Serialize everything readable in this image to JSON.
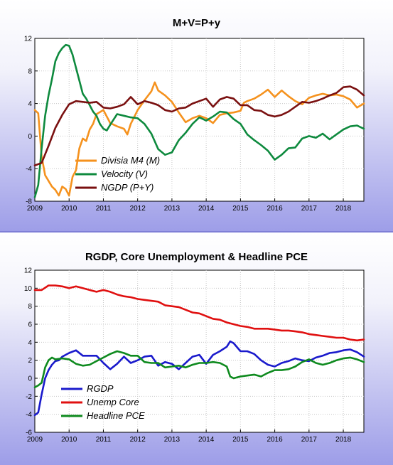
{
  "chart_data": [
    {
      "type": "line",
      "title": "M+V=P+y",
      "xlabel": "",
      "ylabel": "",
      "xlim": [
        2009.0,
        2018.6
      ],
      "ylim": [
        -8,
        12
      ],
      "yticks": [
        "12",
        "8",
        "4",
        "0",
        "-4",
        "-8"
      ],
      "xticks": [
        "2009",
        "2010",
        "2011",
        "2012",
        "2013",
        "2014",
        "2015",
        "2016",
        "2017",
        "2018"
      ],
      "grid": true,
      "legend_position": "bottom-left",
      "series": [
        {
          "name": "Divisia M4 (M)",
          "color": "#f5921e",
          "x": [
            2009.0,
            2009.1,
            2009.2,
            2009.3,
            2009.4,
            2009.5,
            2009.6,
            2009.7,
            2009.8,
            2009.9,
            2010.0,
            2010.1,
            2010.2,
            2010.3,
            2010.4,
            2010.5,
            2010.6,
            2010.7,
            2010.8,
            2011.0,
            2011.2,
            2011.4,
            2011.6,
            2011.7,
            2011.8,
            2012.0,
            2012.2,
            2012.4,
            2012.5,
            2012.6,
            2012.8,
            2013.0,
            2013.2,
            2013.4,
            2013.6,
            2013.8,
            2014.0,
            2014.2,
            2014.4,
            2014.6,
            2014.8,
            2015.0,
            2015.1,
            2015.2,
            2015.4,
            2015.6,
            2015.8,
            2016.0,
            2016.2,
            2016.4,
            2016.6,
            2016.8,
            2017.0,
            2017.2,
            2017.4,
            2017.6,
            2017.8,
            2018.0,
            2018.2,
            2018.4,
            2018.6
          ],
          "y": [
            3.2,
            2.8,
            -2.5,
            -4.8,
            -5.5,
            -6.2,
            -6.6,
            -7.3,
            -6.2,
            -6.5,
            -7.3,
            -5.0,
            -4.2,
            -1.5,
            -0.3,
            -0.6,
            0.8,
            1.5,
            2.7,
            3.2,
            1.6,
            1.2,
            0.9,
            0.2,
            1.5,
            3.2,
            4.4,
            5.5,
            6.6,
            5.6,
            5.0,
            4.2,
            2.9,
            1.7,
            2.2,
            2.5,
            2.2,
            1.6,
            2.6,
            2.8,
            2.9,
            3.1,
            4.1,
            4.3,
            4.6,
            5.1,
            5.7,
            4.8,
            5.6,
            4.9,
            4.3,
            3.9,
            4.7,
            5.0,
            5.2,
            5.0,
            5.1,
            4.9,
            4.5,
            3.5,
            4.0
          ]
        },
        {
          "name": "Velocity (V)",
          "color": "#0e8a3e",
          "x": [
            2009.0,
            2009.1,
            2009.2,
            2009.3,
            2009.4,
            2009.5,
            2009.6,
            2009.7,
            2009.8,
            2009.9,
            2010.0,
            2010.1,
            2010.2,
            2010.3,
            2010.4,
            2010.5,
            2010.6,
            2010.7,
            2010.8,
            2010.9,
            2011.0,
            2011.1,
            2011.2,
            2011.4,
            2011.6,
            2011.8,
            2012.0,
            2012.2,
            2012.4,
            2012.6,
            2012.8,
            2013.0,
            2013.2,
            2013.4,
            2013.6,
            2013.8,
            2014.0,
            2014.2,
            2014.4,
            2014.6,
            2014.8,
            2015.0,
            2015.2,
            2015.4,
            2015.6,
            2015.8,
            2016.0,
            2016.2,
            2016.4,
            2016.6,
            2016.8,
            2017.0,
            2017.2,
            2017.4,
            2017.6,
            2017.8,
            2018.0,
            2018.2,
            2018.4,
            2018.6
          ],
          "y": [
            -7.5,
            -6.0,
            -1.5,
            2.5,
            5.0,
            7.0,
            9.2,
            10.2,
            10.8,
            11.2,
            11.1,
            10.0,
            8.4,
            6.8,
            5.2,
            4.6,
            3.8,
            3.0,
            2.5,
            1.5,
            0.9,
            0.7,
            1.4,
            2.7,
            2.5,
            2.3,
            2.2,
            1.5,
            0.3,
            -1.6,
            -2.3,
            -2.0,
            -0.5,
            0.4,
            1.5,
            2.3,
            1.9,
            2.4,
            3.0,
            2.9,
            2.1,
            1.5,
            0.2,
            -0.5,
            -1.1,
            -1.8,
            -2.9,
            -2.3,
            -1.5,
            -1.4,
            -0.3,
            0.0,
            -0.2,
            0.3,
            -0.4,
            0.2,
            0.8,
            1.2,
            1.3,
            0.9
          ]
        },
        {
          "name": "NGDP (P+Y)",
          "color": "#7a1010",
          "x": [
            2009.0,
            2009.2,
            2009.4,
            2009.6,
            2009.8,
            2010.0,
            2010.2,
            2010.4,
            2010.6,
            2010.8,
            2011.0,
            2011.2,
            2011.4,
            2011.6,
            2011.8,
            2012.0,
            2012.2,
            2012.4,
            2012.6,
            2012.8,
            2013.0,
            2013.2,
            2013.4,
            2013.6,
            2013.8,
            2014.0,
            2014.2,
            2014.4,
            2014.6,
            2014.8,
            2015.0,
            2015.2,
            2015.4,
            2015.6,
            2015.8,
            2016.0,
            2016.2,
            2016.4,
            2016.6,
            2016.8,
            2017.0,
            2017.2,
            2017.4,
            2017.6,
            2017.8,
            2018.0,
            2018.2,
            2018.4,
            2018.6
          ],
          "y": [
            -3.6,
            -3.3,
            -1.2,
            1.0,
            2.6,
            3.9,
            4.3,
            4.2,
            4.1,
            4.2,
            3.5,
            3.4,
            3.6,
            3.9,
            4.8,
            3.9,
            4.3,
            4.1,
            3.8,
            3.2,
            3.0,
            3.4,
            3.5,
            4.0,
            4.3,
            4.6,
            3.6,
            4.5,
            4.8,
            4.6,
            3.8,
            3.8,
            3.2,
            3.1,
            2.6,
            2.4,
            2.6,
            3.0,
            3.6,
            4.2,
            4.1,
            4.3,
            4.6,
            5.0,
            5.3,
            6.0,
            6.1,
            5.7,
            5.0
          ]
        }
      ]
    },
    {
      "type": "line",
      "title": "RGDP, Core Unemployment & Headline PCE",
      "xlabel": "",
      "ylabel": "",
      "xlim": [
        2009.0,
        2018.6
      ],
      "ylim": [
        -6,
        12
      ],
      "yticks": [
        "12",
        "10",
        "8",
        "6",
        "4",
        "2",
        "0",
        "-2",
        "-4",
        "-6"
      ],
      "xticks": [
        "2009",
        "2010",
        "2011",
        "2012",
        "2013",
        "2014",
        "2015",
        "2016",
        "2017",
        "2018"
      ],
      "grid": true,
      "legend_position": "bottom-left",
      "series": [
        {
          "name": "RGDP",
          "color": "#1a1acc",
          "x": [
            2009.0,
            2009.1,
            2009.2,
            2009.3,
            2009.4,
            2009.5,
            2009.6,
            2009.7,
            2009.8,
            2010.0,
            2010.2,
            2010.4,
            2010.6,
            2010.8,
            2011.0,
            2011.2,
            2011.4,
            2011.6,
            2011.8,
            2012.0,
            2012.2,
            2012.4,
            2012.6,
            2012.8,
            2013.0,
            2013.2,
            2013.4,
            2013.6,
            2013.8,
            2014.0,
            2014.2,
            2014.4,
            2014.6,
            2014.7,
            2014.8,
            2015.0,
            2015.2,
            2015.4,
            2015.6,
            2015.8,
            2016.0,
            2016.2,
            2016.4,
            2016.6,
            2016.8,
            2017.0,
            2017.2,
            2017.4,
            2017.6,
            2017.8,
            2018.0,
            2018.2,
            2018.4,
            2018.6
          ],
          "y": [
            -4.1,
            -3.8,
            -1.8,
            0.0,
            0.9,
            1.5,
            1.9,
            2.0,
            2.4,
            2.8,
            3.1,
            2.5,
            2.5,
            2.5,
            1.7,
            1.0,
            1.6,
            2.4,
            1.7,
            2.0,
            2.4,
            2.5,
            1.4,
            1.8,
            1.6,
            1.0,
            1.7,
            2.4,
            2.6,
            1.6,
            2.6,
            3.0,
            3.5,
            4.1,
            3.9,
            3.0,
            3.0,
            2.7,
            2.0,
            1.5,
            1.3,
            1.7,
            1.9,
            2.2,
            2.0,
            1.9,
            2.3,
            2.5,
            2.8,
            2.9,
            3.1,
            3.2,
            2.9,
            2.4
          ]
        },
        {
          "name": "Unemp Core",
          "color": "#e01010",
          "x": [
            2009.0,
            2009.2,
            2009.4,
            2009.6,
            2009.8,
            2010.0,
            2010.2,
            2010.4,
            2010.6,
            2010.8,
            2011.0,
            2011.2,
            2011.4,
            2011.6,
            2011.8,
            2012.0,
            2012.2,
            2012.4,
            2012.6,
            2012.8,
            2013.0,
            2013.2,
            2013.4,
            2013.6,
            2013.8,
            2014.0,
            2014.2,
            2014.4,
            2014.6,
            2014.8,
            2015.0,
            2015.2,
            2015.4,
            2015.6,
            2015.8,
            2016.0,
            2016.2,
            2016.4,
            2016.6,
            2016.8,
            2017.0,
            2017.2,
            2017.4,
            2017.6,
            2017.8,
            2018.0,
            2018.2,
            2018.4,
            2018.6
          ],
          "y": [
            9.8,
            9.8,
            10.3,
            10.3,
            10.2,
            10.0,
            10.2,
            10.0,
            9.8,
            9.6,
            9.8,
            9.6,
            9.3,
            9.1,
            9.0,
            8.8,
            8.7,
            8.6,
            8.5,
            8.1,
            8.0,
            7.9,
            7.6,
            7.3,
            7.2,
            6.9,
            6.6,
            6.5,
            6.2,
            6.0,
            5.8,
            5.7,
            5.5,
            5.5,
            5.5,
            5.4,
            5.3,
            5.3,
            5.2,
            5.1,
            4.9,
            4.8,
            4.7,
            4.6,
            4.5,
            4.5,
            4.3,
            4.2,
            4.3
          ]
        },
        {
          "name": "Headline PCE",
          "color": "#0e8a1e",
          "x": [
            2009.0,
            2009.1,
            2009.2,
            2009.3,
            2009.4,
            2009.5,
            2009.6,
            2009.8,
            2010.0,
            2010.2,
            2010.4,
            2010.6,
            2010.8,
            2011.0,
            2011.2,
            2011.4,
            2011.6,
            2011.8,
            2012.0,
            2012.2,
            2012.4,
            2012.6,
            2012.8,
            2013.0,
            2013.2,
            2013.4,
            2013.6,
            2013.8,
            2014.0,
            2014.2,
            2014.4,
            2014.6,
            2014.7,
            2014.8,
            2015.0,
            2015.2,
            2015.4,
            2015.6,
            2015.8,
            2016.0,
            2016.2,
            2016.4,
            2016.6,
            2016.8,
            2017.0,
            2017.2,
            2017.4,
            2017.6,
            2017.8,
            2018.0,
            2018.2,
            2018.4,
            2018.6
          ],
          "y": [
            -1.0,
            -0.8,
            -0.5,
            1.2,
            2.0,
            2.3,
            2.1,
            2.2,
            2.1,
            1.6,
            1.4,
            1.5,
            1.9,
            2.3,
            2.7,
            3.0,
            2.8,
            2.5,
            2.5,
            1.8,
            1.7,
            1.7,
            1.2,
            1.3,
            1.4,
            1.2,
            1.5,
            1.7,
            1.7,
            1.8,
            1.7,
            1.3,
            0.2,
            0.0,
            0.2,
            0.3,
            0.4,
            0.2,
            0.6,
            0.9,
            0.9,
            1.0,
            1.3,
            1.8,
            2.1,
            1.7,
            1.5,
            1.7,
            2.0,
            2.2,
            2.3,
            2.1,
            1.8
          ]
        }
      ]
    }
  ]
}
